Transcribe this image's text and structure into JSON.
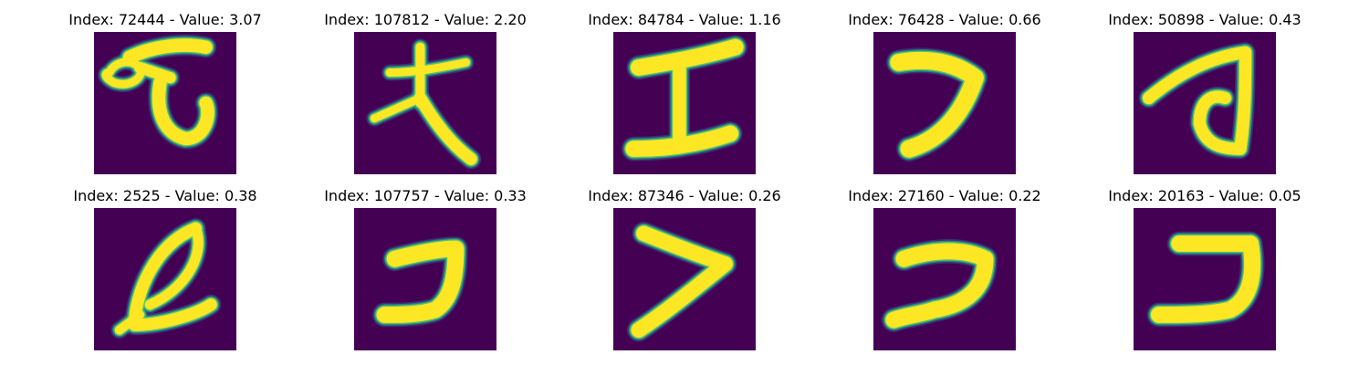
{
  "colors": {
    "background": "#440154",
    "stroke_core": "#fde725",
    "stroke_mid": "#5ec962",
    "stroke_edge": "#21918c",
    "stroke_outer": "#3b528b"
  },
  "panels": [
    {
      "title": "Index: 72444 - Value: 3.07"
    },
    {
      "title": "Index: 107812 - Value: 2.20"
    },
    {
      "title": "Index: 84784 - Value: 1.16"
    },
    {
      "title": "Index: 76428 - Value: 0.66"
    },
    {
      "title": "Index: 50898 - Value: 0.43"
    },
    {
      "title": "Index: 2525 - Value: 0.38"
    },
    {
      "title": "Index: 107757 - Value: 0.33"
    },
    {
      "title": "Index: 87346 - Value: 0.26"
    },
    {
      "title": "Index: 27160 - Value: 0.22"
    },
    {
      "title": "Index: 20163 - Value: 0.05"
    }
  ]
}
